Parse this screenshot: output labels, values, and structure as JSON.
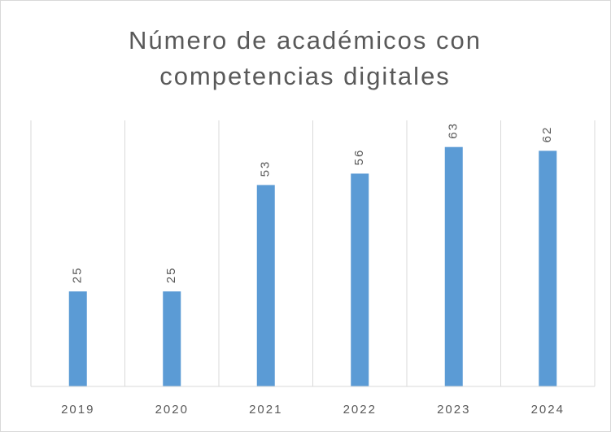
{
  "chart_data": {
    "type": "bar",
    "title": "Número de académicos con competencias digitales",
    "categories": [
      "2019",
      "2020",
      "2021",
      "2022",
      "2023",
      "2024"
    ],
    "values": [
      25,
      25,
      53,
      56,
      63,
      62
    ],
    "color": "#5b9bd5",
    "ylim": [
      0,
      70
    ]
  }
}
